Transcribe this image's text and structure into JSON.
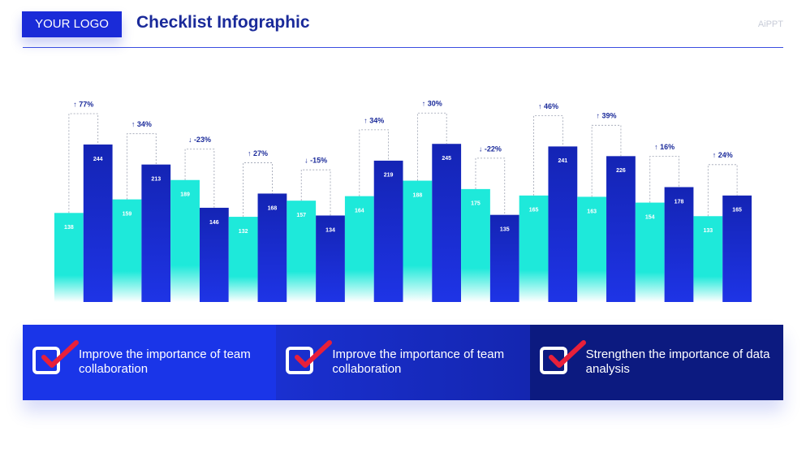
{
  "header": {
    "logo": "YOUR LOGO",
    "title": "Checklist Infographic",
    "brand": "AiPPT"
  },
  "chart_data": {
    "type": "bar",
    "series": [
      {
        "color": "#1ee9da",
        "values": [
          138,
          159,
          189,
          132,
          157,
          164,
          188,
          175,
          165,
          163,
          154,
          133
        ]
      },
      {
        "color": "#1424b4",
        "values": [
          244,
          213,
          146,
          168,
          134,
          219,
          245,
          135,
          241,
          226,
          178,
          165
        ]
      }
    ],
    "annotations": [
      "↑ 77%",
      "↑ 34%",
      "↓ -23%",
      "↑ 27%",
      "↓ -15%",
      "↑ 34%",
      "↑ 30%",
      "↓ -22%",
      "↑ 46%",
      "↑ 39%",
      "↑ 16%",
      "↑ 24%"
    ]
  },
  "checklist": [
    {
      "text": "Improve the importance of team collaboration"
    },
    {
      "text": "Improve the importance of team collaboration"
    },
    {
      "text": "Strengthen the importance of data analysis"
    }
  ]
}
